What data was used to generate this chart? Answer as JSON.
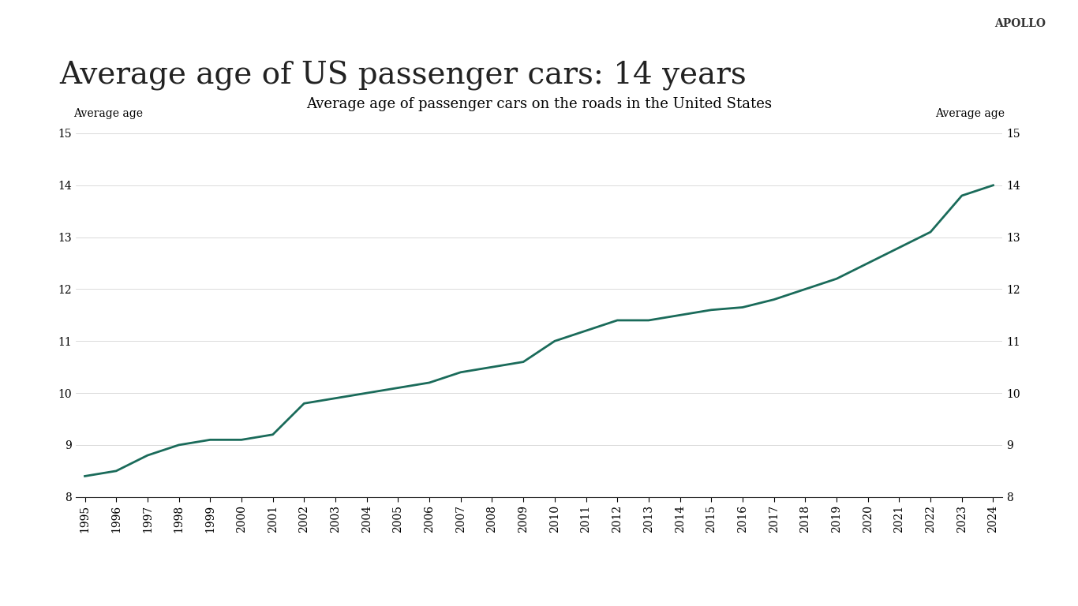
{
  "title": "Average age of US passenger cars: 14 years",
  "subtitle": "Average age of passenger cars on the roads in the United States",
  "watermark": "APOLLO",
  "left_axis_label": "Average age",
  "right_axis_label": "Average age",
  "years": [
    1995,
    1996,
    1997,
    1998,
    1999,
    2000,
    2001,
    2002,
    2003,
    2004,
    2005,
    2006,
    2007,
    2008,
    2009,
    2010,
    2011,
    2012,
    2013,
    2014,
    2015,
    2016,
    2017,
    2018,
    2019,
    2020,
    2021,
    2022,
    2023,
    2024
  ],
  "values": [
    8.4,
    8.5,
    8.8,
    9.0,
    9.1,
    9.1,
    9.2,
    9.8,
    9.9,
    10.0,
    10.1,
    10.2,
    10.4,
    10.5,
    10.6,
    11.0,
    11.2,
    11.4,
    11.4,
    11.5,
    11.6,
    11.65,
    11.8,
    12.0,
    12.2,
    12.5,
    12.8,
    13.1,
    13.8,
    14.0
  ],
  "line_color": "#1a6b5a",
  "line_width": 2.0,
  "ylim": [
    8,
    15
  ],
  "yticks": [
    8,
    9,
    10,
    11,
    12,
    13,
    14,
    15
  ],
  "background_color": "#ffffff",
  "title_fontsize": 28,
  "subtitle_fontsize": 13,
  "axis_label_fontsize": 10,
  "tick_fontsize": 10,
  "watermark_fontsize": 10
}
